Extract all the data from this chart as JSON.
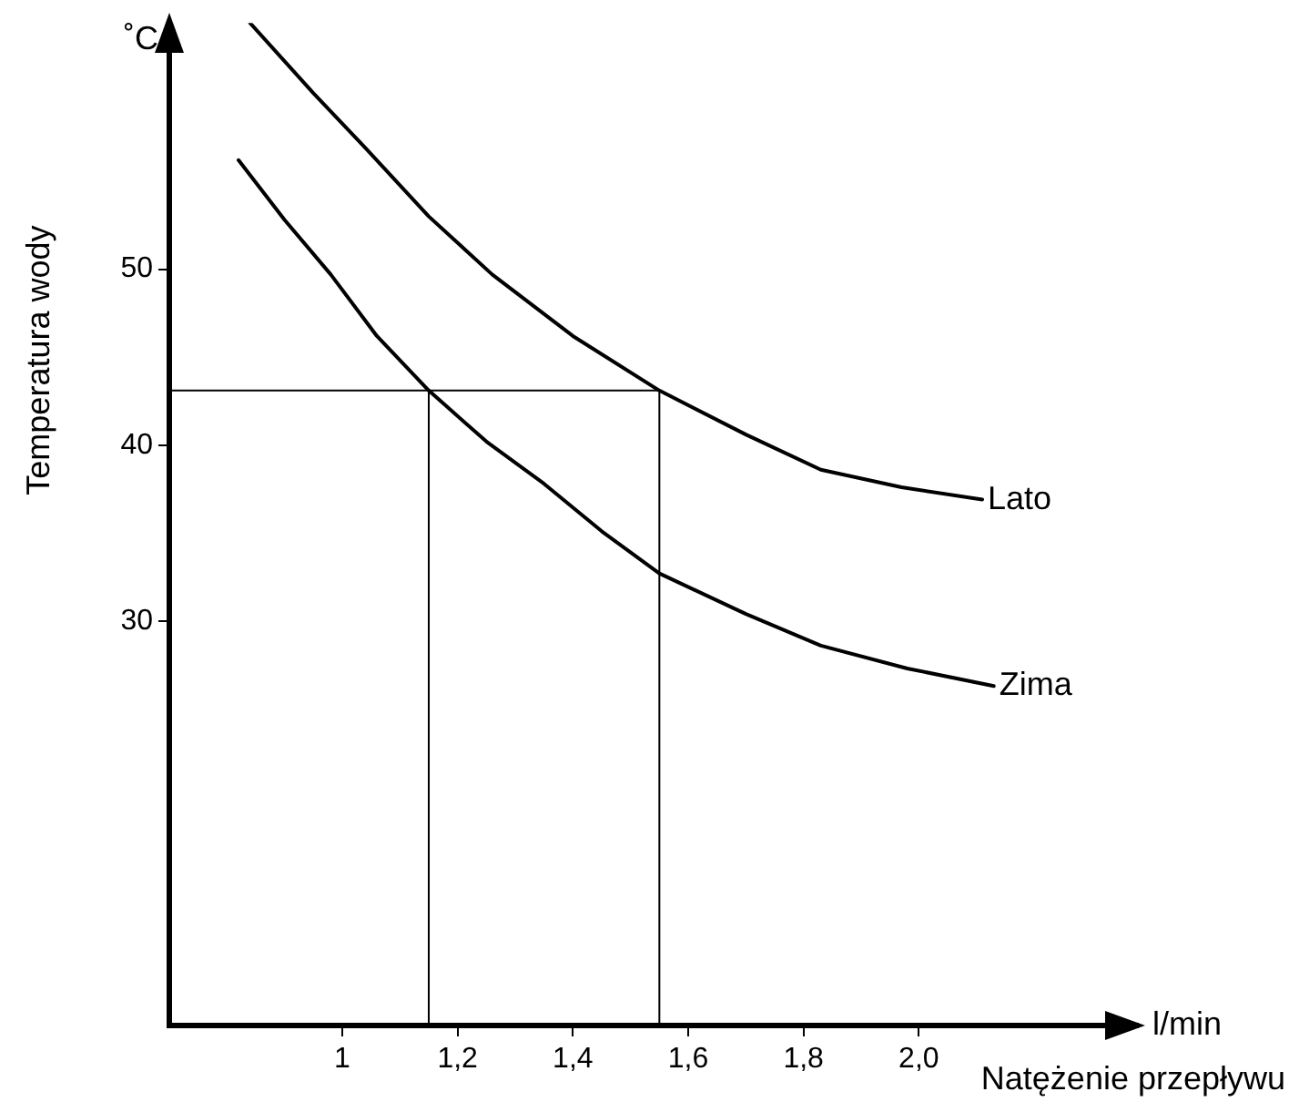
{
  "chart_data": {
    "type": "line",
    "ylabel": "Temperatura wody",
    "xlabel": "Natężenie przepływu",
    "annotations": [
      "˚C",
      "l/min"
    ],
    "xlim": [
      0.7,
      2.38
    ],
    "ylim": [
      7,
      64
    ],
    "xticks": [
      1,
      {
        "value": 1.2,
        "label": "1,2"
      },
      {
        "value": 1.4,
        "label": "1,4"
      },
      {
        "value": 1.6,
        "label": "1,6"
      },
      {
        "value": 1.8,
        "label": "1,8"
      },
      {
        "value": 2.0,
        "label": "2,0"
      }
    ],
    "yticks": [
      30,
      40,
      50
    ],
    "grid": false,
    "legend": false,
    "marker": "none",
    "series": [
      {
        "name": "Lato",
        "color": "#000000",
        "x": [
          0.84,
          0.95,
          1.04,
          1.15,
          1.26,
          1.4,
          1.55,
          1.7,
          1.83,
          1.97,
          2.11
        ],
        "values": [
          64,
          60,
          56.9,
          53,
          49.7,
          46.2,
          43.1,
          40.6,
          38.6,
          37.6,
          36.9
        ]
      },
      {
        "name": "Zima",
        "color": "#000000",
        "x": [
          0.82,
          0.9,
          0.98,
          1.06,
          1.15,
          1.25,
          1.35,
          1.45,
          1.55,
          1.7,
          1.83,
          1.98,
          2.13
        ],
        "values": [
          56.2,
          52.8,
          49.7,
          46.2,
          43.1,
          40.2,
          37.8,
          35.1,
          32.7,
          30.4,
          28.6,
          27.3,
          26.3
        ]
      },
      {
        "color": "#000000",
        "x": [
          0.7,
          1.55,
          1.55
        ],
        "values": [
          43.1,
          43.1,
          7
        ]
      },
      {
        "color": "#000000",
        "x": [
          1.15,
          1.15
        ],
        "values": [
          43.1,
          7
        ]
      }
    ]
  }
}
